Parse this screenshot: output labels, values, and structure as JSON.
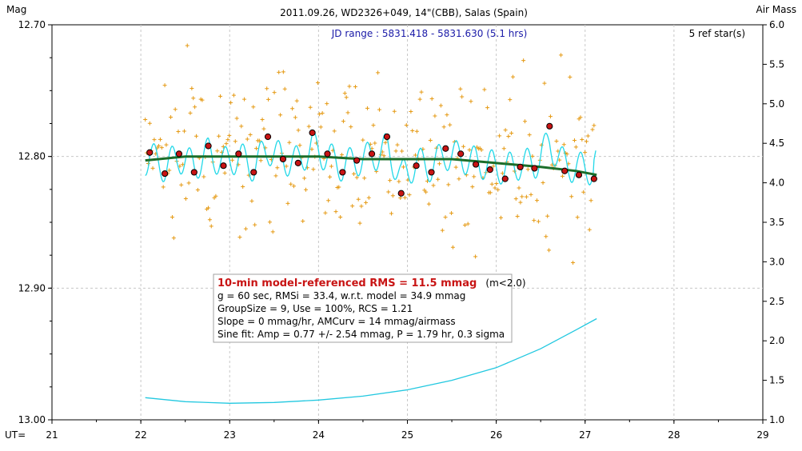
{
  "chart_data": {
    "type": "scatter",
    "title": "2011.09.26, WD2326+049, 14\"(CBB), Salas (Spain)",
    "jd_range": "JD range : 5831.418 - 5831.630 (5.1 hrs)",
    "ref_stars": "5 ref star(s)",
    "y_left_label": "Mag",
    "y_right_label": "Air Mass",
    "x_label": "UT=",
    "xlim": [
      21,
      29
    ],
    "ylim_mag": [
      13.0,
      12.7
    ],
    "ylim_airmass": [
      1.0,
      6.0
    ],
    "x_ticks": [
      "21",
      "22",
      "23",
      "24",
      "25",
      "26",
      "27",
      "28",
      "29"
    ],
    "y_left_ticks": [
      "12.70",
      "12.80",
      "12.90",
      "13.00"
    ],
    "y_right_ticks": [
      "1.0",
      "1.5",
      "2.0",
      "2.5",
      "3.0",
      "3.5",
      "4.0",
      "4.5",
      "5.0",
      "5.5",
      "6.0"
    ],
    "grid": true,
    "stats": {
      "headline": "10-min model-referenced RMS = 11.5 mmag",
      "headline_suffix": "(m<2.0)",
      "lines": [
        "g = 60 sec, RMSi = 33.4, w.r.t. model = 34.9 mmag",
        "GroupSize = 9, Use = 100%, RCS = 1.21",
        "Slope = 0 mmag/hr, AMCurv = 14 mmag/airmass",
        "Sine fit: Amp = 0.77 +/- 2.54 mmag, P = 1.79 hr, 0.3 sigma"
      ]
    },
    "series": [
      {
        "kind": "averages",
        "points": [
          [
            22.1,
            12.797
          ],
          [
            22.27,
            12.813
          ],
          [
            22.43,
            12.798
          ],
          [
            22.6,
            12.812
          ],
          [
            22.76,
            12.792
          ],
          [
            22.93,
            12.807
          ],
          [
            23.1,
            12.798
          ],
          [
            23.27,
            12.812
          ],
          [
            23.43,
            12.785
          ],
          [
            23.6,
            12.802
          ],
          [
            23.77,
            12.805
          ],
          [
            23.93,
            12.782
          ],
          [
            24.1,
            12.798
          ],
          [
            24.27,
            12.812
          ],
          [
            24.43,
            12.803
          ],
          [
            24.6,
            12.798
          ],
          [
            24.77,
            12.785
          ],
          [
            24.93,
            12.828
          ],
          [
            25.1,
            12.807
          ],
          [
            25.27,
            12.812
          ],
          [
            25.43,
            12.794
          ],
          [
            25.6,
            12.798
          ],
          [
            25.77,
            12.806
          ],
          [
            25.93,
            12.81
          ],
          [
            26.1,
            12.817
          ],
          [
            26.27,
            12.808
          ],
          [
            26.43,
            12.809
          ],
          [
            26.6,
            12.777
          ],
          [
            26.77,
            12.811
          ],
          [
            26.93,
            12.814
          ],
          [
            27.1,
            12.817
          ]
        ]
      },
      {
        "kind": "model",
        "points": [
          [
            22.05,
            12.803
          ],
          [
            22.5,
            12.8
          ],
          [
            23.0,
            12.8
          ],
          [
            23.5,
            12.8
          ],
          [
            24.0,
            12.8
          ],
          [
            24.5,
            12.802
          ],
          [
            25.0,
            12.802
          ],
          [
            25.5,
            12.802
          ],
          [
            26.0,
            12.805
          ],
          [
            26.5,
            12.808
          ],
          [
            26.9,
            12.811
          ],
          [
            27.13,
            12.814
          ]
        ]
      },
      {
        "kind": "airmass",
        "points": [
          [
            22.05,
            1.28
          ],
          [
            22.5,
            1.23
          ],
          [
            23.0,
            1.21
          ],
          [
            23.5,
            1.22
          ],
          [
            24.0,
            1.25
          ],
          [
            24.5,
            1.3
          ],
          [
            25.0,
            1.38
          ],
          [
            25.5,
            1.5
          ],
          [
            26.0,
            1.66
          ],
          [
            26.5,
            1.9
          ],
          [
            26.9,
            2.14
          ],
          [
            27.13,
            2.28
          ]
        ]
      }
    ]
  },
  "colors": {
    "raw_points": "#e59a14",
    "averages": "#c81414",
    "sine_fit": "#22d8e8",
    "model": "#1c6e2a",
    "airmass": "#22c8e0",
    "jd_text": "#1a1aa8",
    "headline_text": "#c81414"
  }
}
